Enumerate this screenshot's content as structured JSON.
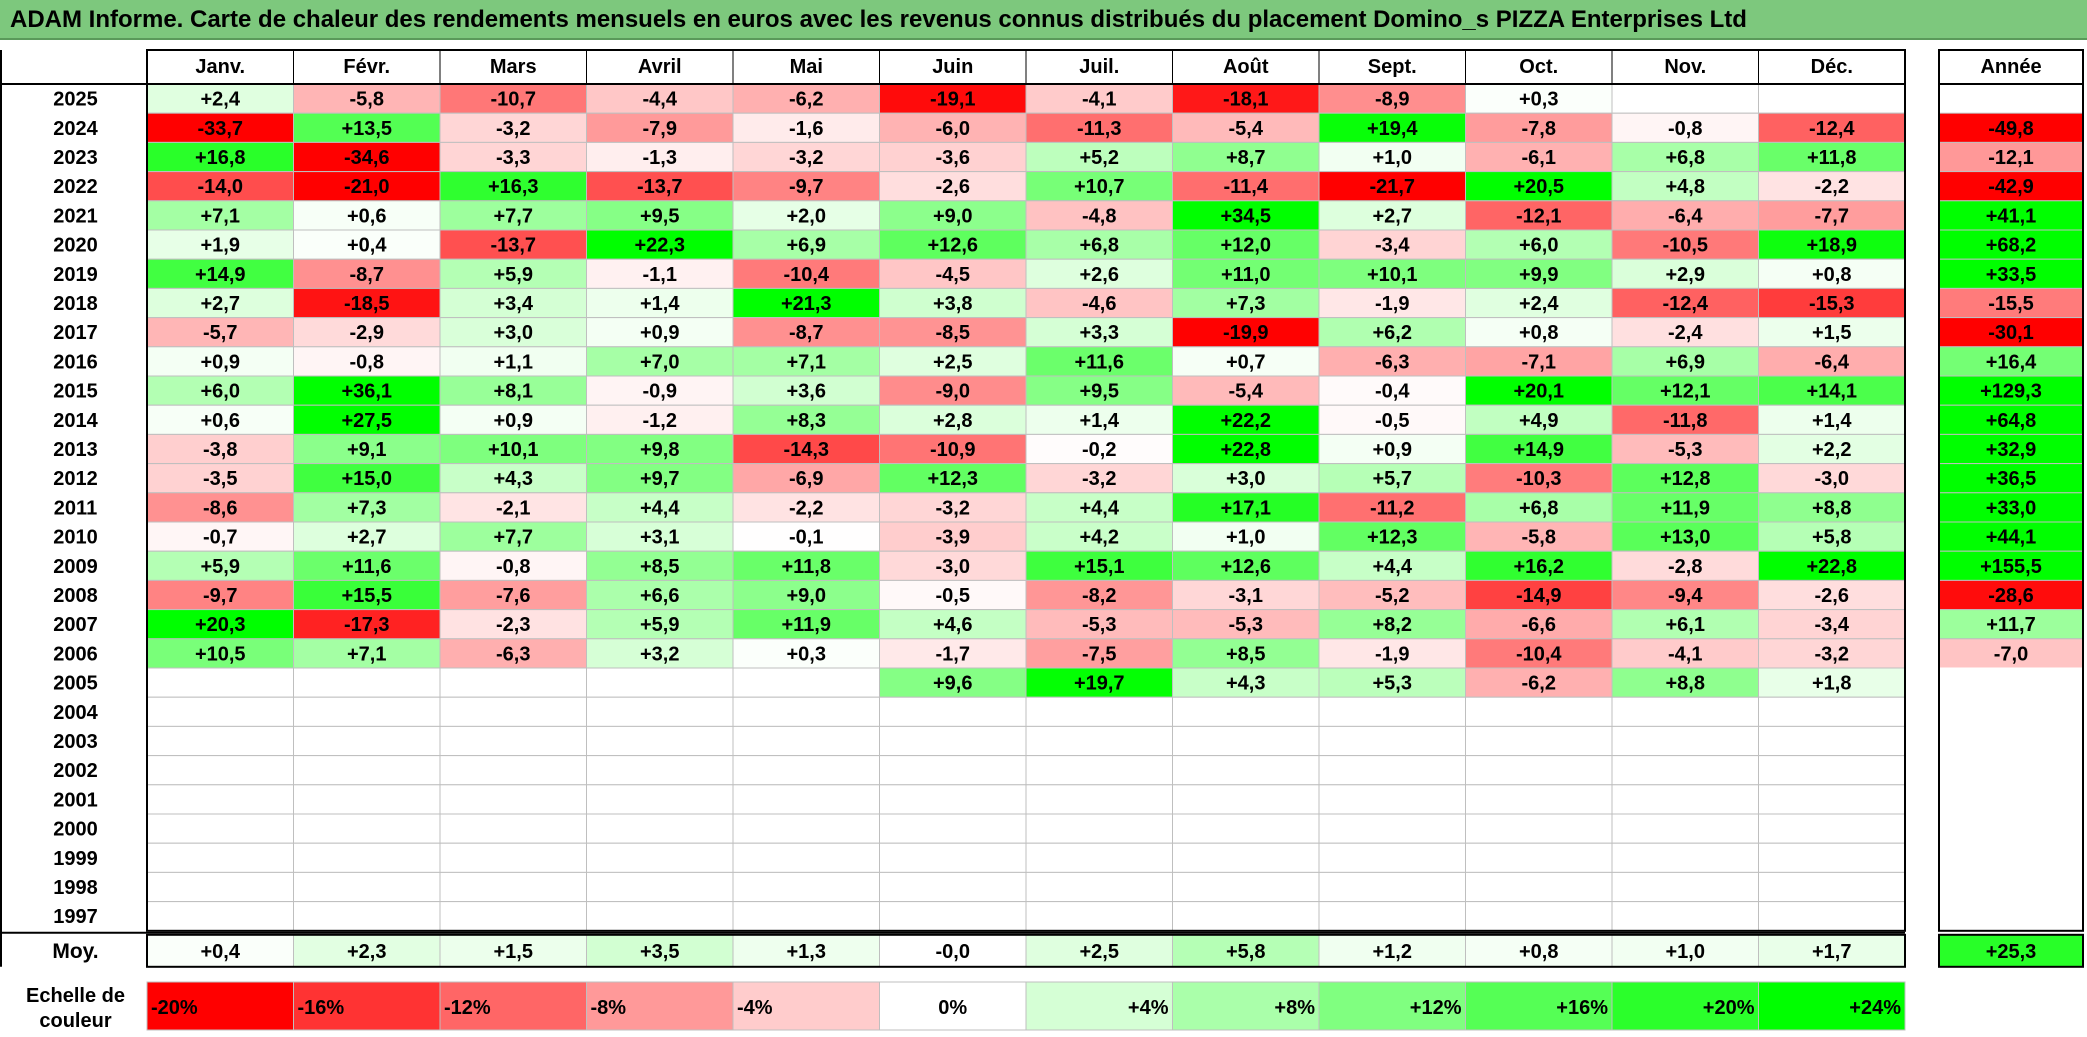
{
  "title": "ADAM Informe. Carte de chaleur des rendements mensuels en euros avec les revenus connus distribués du placement Domino_s PIZZA Enterprises Ltd",
  "chart_data": {
    "type": "heatmap",
    "title": "ADAM Informe. Carte de chaleur des rendements mensuels en euros avec les revenus connus distribués du placement Domino_s PIZZA Enterprises Ltd",
    "months": [
      "Janv.",
      "Févr.",
      "Mars",
      "Avril",
      "Mai",
      "Juin",
      "Juil.",
      "Août",
      "Sept.",
      "Oct.",
      "Nov.",
      "Déc."
    ],
    "year_header": "Année",
    "rows": [
      {
        "year": "2025",
        "values": [
          "+2,4",
          "-5,8",
          "-10,7",
          "-4,4",
          "-6,2",
          "-19,1",
          "-4,1",
          "-18,1",
          "-8,9",
          "+0,3",
          "",
          ""
        ],
        "annual": ""
      },
      {
        "year": "2024",
        "values": [
          "-33,7",
          "+13,5",
          "-3,2",
          "-7,9",
          "-1,6",
          "-6,0",
          "-11,3",
          "-5,4",
          "+19,4",
          "-7,8",
          "-0,8",
          "-12,4"
        ],
        "annual": "-49,8"
      },
      {
        "year": "2023",
        "values": [
          "+16,8",
          "-34,6",
          "-3,3",
          "-1,3",
          "-3,2",
          "-3,6",
          "+5,2",
          "+8,7",
          "+1,0",
          "-6,1",
          "+6,8",
          "+11,8"
        ],
        "annual": "-12,1"
      },
      {
        "year": "2022",
        "values": [
          "-14,0",
          "-21,0",
          "+16,3",
          "-13,7",
          "-9,7",
          "-2,6",
          "+10,7",
          "-11,4",
          "-21,7",
          "+20,5",
          "+4,8",
          "-2,2"
        ],
        "annual": "-42,9"
      },
      {
        "year": "2021",
        "values": [
          "+7,1",
          "+0,6",
          "+7,7",
          "+9,5",
          "+2,0",
          "+9,0",
          "-4,8",
          "+34,5",
          "+2,7",
          "-12,1",
          "-6,4",
          "-7,7"
        ],
        "annual": "+41,1"
      },
      {
        "year": "2020",
        "values": [
          "+1,9",
          "+0,4",
          "-13,7",
          "+22,3",
          "+6,9",
          "+12,6",
          "+6,8",
          "+12,0",
          "-3,4",
          "+6,0",
          "-10,5",
          "+18,9"
        ],
        "annual": "+68,2"
      },
      {
        "year": "2019",
        "values": [
          "+14,9",
          "-8,7",
          "+5,9",
          "-1,1",
          "-10,4",
          "-4,5",
          "+2,6",
          "+11,0",
          "+10,1",
          "+9,9",
          "+2,9",
          "+0,8"
        ],
        "annual": "+33,5"
      },
      {
        "year": "2018",
        "values": [
          "+2,7",
          "-18,5",
          "+3,4",
          "+1,4",
          "+21,3",
          "+3,8",
          "-4,6",
          "+7,3",
          "-1,9",
          "+2,4",
          "-12,4",
          "-15,3"
        ],
        "annual": "-15,5"
      },
      {
        "year": "2017",
        "values": [
          "-5,7",
          "-2,9",
          "+3,0",
          "+0,9",
          "-8,7",
          "-8,5",
          "+3,3",
          "-19,9",
          "+6,2",
          "+0,8",
          "-2,4",
          "+1,5"
        ],
        "annual": "-30,1"
      },
      {
        "year": "2016",
        "values": [
          "+0,9",
          "-0,8",
          "+1,1",
          "+7,0",
          "+7,1",
          "+2,5",
          "+11,6",
          "+0,7",
          "-6,3",
          "-7,1",
          "+6,9",
          "-6,4"
        ],
        "annual": "+16,4"
      },
      {
        "year": "2015",
        "values": [
          "+6,0",
          "+36,1",
          "+8,1",
          "-0,9",
          "+3,6",
          "-9,0",
          "+9,5",
          "-5,4",
          "-0,4",
          "+20,1",
          "+12,1",
          "+14,1"
        ],
        "annual": "+129,3"
      },
      {
        "year": "2014",
        "values": [
          "+0,6",
          "+27,5",
          "+0,9",
          "-1,2",
          "+8,3",
          "+2,8",
          "+1,4",
          "+22,2",
          "-0,5",
          "+4,9",
          "-11,8",
          "+1,4"
        ],
        "annual": "+64,8"
      },
      {
        "year": "2013",
        "values": [
          "-3,8",
          "+9,1",
          "+10,1",
          "+9,8",
          "-14,3",
          "-10,9",
          "-0,2",
          "+22,8",
          "+0,9",
          "+14,9",
          "-5,3",
          "+2,2"
        ],
        "annual": "+32,9"
      },
      {
        "year": "2012",
        "values": [
          "-3,5",
          "+15,0",
          "+4,3",
          "+9,7",
          "-6,9",
          "+12,3",
          "-3,2",
          "+3,0",
          "+5,7",
          "-10,3",
          "+12,8",
          "-3,0"
        ],
        "annual": "+36,5"
      },
      {
        "year": "2011",
        "values": [
          "-8,6",
          "+7,3",
          "-2,1",
          "+4,4",
          "-2,2",
          "-3,2",
          "+4,4",
          "+17,1",
          "-11,2",
          "+6,8",
          "+11,9",
          "+8,8"
        ],
        "annual": "+33,0"
      },
      {
        "year": "2010",
        "values": [
          "-0,7",
          "+2,7",
          "+7,7",
          "+3,1",
          "-0,1",
          "-3,9",
          "+4,2",
          "+1,0",
          "+12,3",
          "-5,8",
          "+13,0",
          "+5,8"
        ],
        "annual": "+44,1"
      },
      {
        "year": "2009",
        "values": [
          "+5,9",
          "+11,6",
          "-0,8",
          "+8,5",
          "+11,8",
          "-3,0",
          "+15,1",
          "+12,6",
          "+4,4",
          "+16,2",
          "-2,8",
          "+22,8"
        ],
        "annual": "+155,5"
      },
      {
        "year": "2008",
        "values": [
          "-9,7",
          "+15,5",
          "-7,6",
          "+6,6",
          "+9,0",
          "-0,5",
          "-8,2",
          "-3,1",
          "-5,2",
          "-14,9",
          "-9,4",
          "-2,6"
        ],
        "annual": "-28,6"
      },
      {
        "year": "2007",
        "values": [
          "+20,3",
          "-17,3",
          "-2,3",
          "+5,9",
          "+11,9",
          "+4,6",
          "-5,3",
          "-5,3",
          "+8,2",
          "-6,6",
          "+6,1",
          "-3,4"
        ],
        "annual": "+11,7"
      },
      {
        "year": "2006",
        "values": [
          "+10,5",
          "+7,1",
          "-6,3",
          "+3,2",
          "+0,3",
          "-1,7",
          "-7,5",
          "+8,5",
          "-1,9",
          "-10,4",
          "-4,1",
          "-3,2"
        ],
        "annual": "-7,0"
      },
      {
        "year": "2005",
        "values": [
          "",
          "",
          "",
          "",
          "",
          "+9,6",
          "+19,7",
          "+4,3",
          "+5,3",
          "-6,2",
          "+8,8",
          "+1,8"
        ],
        "annual": ""
      },
      {
        "year": "2004",
        "values": [
          "",
          "",
          "",
          "",
          "",
          "",
          "",
          "",
          "",
          "",
          "",
          ""
        ],
        "annual": ""
      },
      {
        "year": "2003",
        "values": [
          "",
          "",
          "",
          "",
          "",
          "",
          "",
          "",
          "",
          "",
          "",
          ""
        ],
        "annual": ""
      },
      {
        "year": "2002",
        "values": [
          "",
          "",
          "",
          "",
          "",
          "",
          "",
          "",
          "",
          "",
          "",
          ""
        ],
        "annual": ""
      },
      {
        "year": "2001",
        "values": [
          "",
          "",
          "",
          "",
          "",
          "",
          "",
          "",
          "",
          "",
          "",
          ""
        ],
        "annual": ""
      },
      {
        "year": "2000",
        "values": [
          "",
          "",
          "",
          "",
          "",
          "",
          "",
          "",
          "",
          "",
          "",
          ""
        ],
        "annual": ""
      },
      {
        "year": "1999",
        "values": [
          "",
          "",
          "",
          "",
          "",
          "",
          "",
          "",
          "",
          "",
          "",
          ""
        ],
        "annual": ""
      },
      {
        "year": "1998",
        "values": [
          "",
          "",
          "",
          "",
          "",
          "",
          "",
          "",
          "",
          "",
          "",
          ""
        ],
        "annual": ""
      },
      {
        "year": "1997",
        "values": [
          "",
          "",
          "",
          "",
          "",
          "",
          "",
          "",
          "",
          "",
          "",
          ""
        ],
        "annual": ""
      }
    ],
    "average": {
      "label": "Moy.",
      "values": [
        "+0,4",
        "+2,3",
        "+1,5",
        "+3,5",
        "+1,3",
        "-0,0",
        "+2,5",
        "+5,8",
        "+1,2",
        "+0,8",
        "+1,0",
        "+1,7"
      ],
      "annual": "+25,3"
    },
    "scale": {
      "label_line1": "Echelle de",
      "label_line2": "couleur",
      "stops": [
        {
          "label": "-20%",
          "color": "#ff0000"
        },
        {
          "label": "-16%",
          "color": "#ff3333"
        },
        {
          "label": "-12%",
          "color": "#ff6666"
        },
        {
          "label": "-8%",
          "color": "#ff9999"
        },
        {
          "label": "-4%",
          "color": "#ffcccc"
        },
        {
          "label": "0%",
          "color": "#ffffff"
        },
        {
          "label": "+4%",
          "color": "#d5ffd5"
        },
        {
          "label": "+8%",
          "color": "#aaffaa"
        },
        {
          "label": "+12%",
          "color": "#80ff80"
        },
        {
          "label": "+16%",
          "color": "#55ff55"
        },
        {
          "label": "+20%",
          "color": "#2bff2b"
        },
        {
          "label": "+24%",
          "color": "#00ff00"
        }
      ]
    }
  }
}
